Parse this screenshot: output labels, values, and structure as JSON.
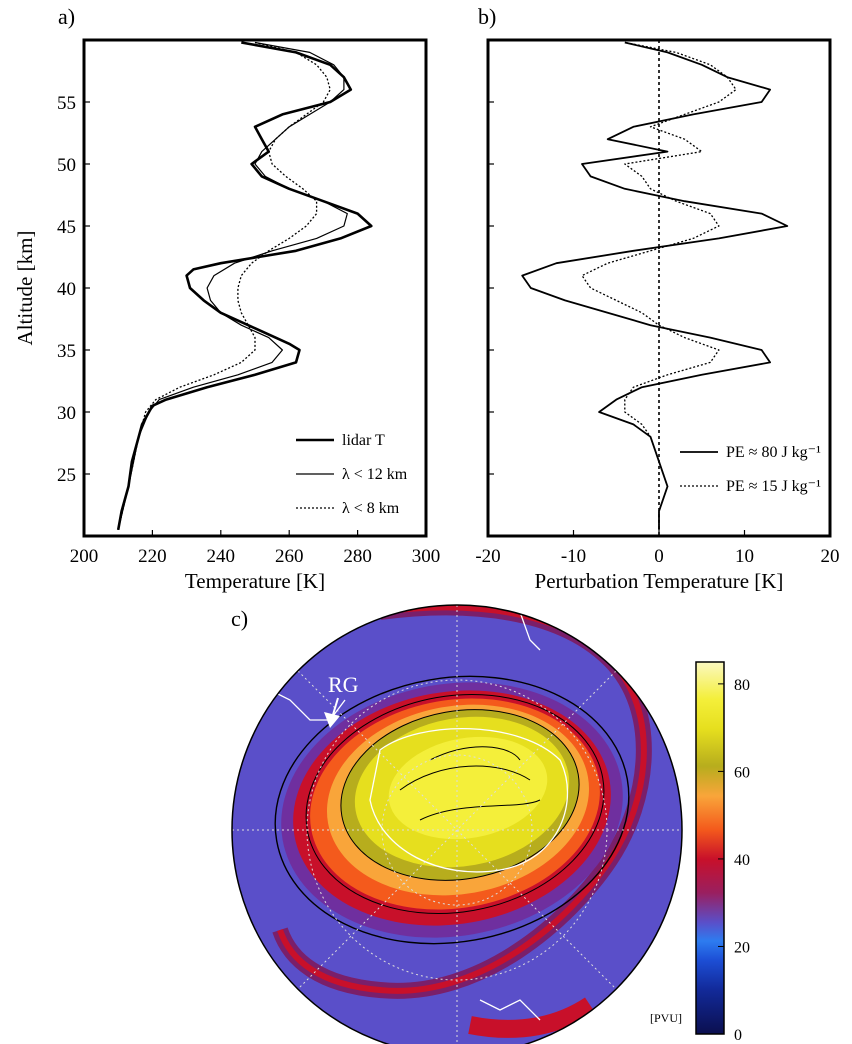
{
  "panels": {
    "a": {
      "label": "a)"
    },
    "b": {
      "label": "b)"
    },
    "c": {
      "label": "c)",
      "site_label": "RG",
      "unit_label": "[PVU]"
    }
  },
  "chart_data": [
    {
      "panel": "a",
      "type": "line",
      "xlabel": "Temperature [K]",
      "ylabel": "Altitude [km]",
      "xlim": [
        200,
        300
      ],
      "ylim": [
        20,
        60
      ],
      "xticks": [
        200,
        220,
        240,
        260,
        280,
        300
      ],
      "yticks": [
        25,
        30,
        35,
        40,
        45,
        50,
        55
      ],
      "legend_position": "bottom-right",
      "series": [
        {
          "name": "lidar T",
          "style": "thick",
          "y": [
            20.5,
            22,
            24,
            26,
            28,
            29,
            30,
            30.5,
            31,
            32,
            33,
            34,
            35,
            35.5,
            36,
            37,
            38,
            39,
            40,
            41,
            41.5,
            42,
            43,
            44,
            45,
            46,
            47,
            48,
            49,
            50,
            51,
            52,
            53,
            54,
            55,
            56,
            57,
            58,
            59,
            59.8
          ],
          "x": [
            210,
            211,
            213,
            214,
            216,
            217,
            219,
            220,
            224,
            236,
            250,
            262,
            263,
            260,
            256,
            248,
            240,
            235,
            231,
            230,
            232,
            240,
            262,
            275,
            284,
            280,
            270,
            260,
            252,
            249,
            254,
            252,
            250,
            258,
            272,
            278,
            276,
            272,
            262,
            246
          ]
        },
        {
          "name": "λ < 12 km",
          "style": "thin",
          "y": [
            20.5,
            24,
            28,
            30,
            31,
            32,
            33,
            34,
            35,
            36,
            37,
            38,
            39,
            40,
            41,
            42,
            43,
            44,
            45,
            46,
            47,
            48,
            49,
            50,
            51,
            52,
            53,
            54,
            55,
            56,
            57,
            58,
            59,
            59.8
          ],
          "x": [
            210,
            213,
            216,
            219,
            222,
            232,
            245,
            255,
            258,
            254,
            246,
            240,
            237,
            236,
            238,
            244,
            255,
            268,
            276,
            277,
            270,
            260,
            253,
            250,
            252,
            256,
            260,
            266,
            272,
            276,
            276,
            273,
            266,
            250
          ]
        },
        {
          "name": "λ < 8 km",
          "style": "dotted",
          "y": [
            20.5,
            24,
            28,
            30,
            31,
            32,
            33,
            34,
            35,
            36,
            37,
            38,
            39,
            40,
            41,
            42,
            43,
            44,
            45,
            46,
            47,
            48,
            49,
            50,
            51,
            52,
            53,
            54,
            55,
            56,
            57,
            58,
            59,
            59.8
          ],
          "x": [
            210,
            213,
            216,
            218,
            221,
            228,
            238,
            246,
            250,
            250,
            248,
            246,
            245,
            245,
            246,
            249,
            254,
            260,
            265,
            268,
            268,
            264,
            259,
            255,
            254,
            256,
            260,
            265,
            270,
            272,
            271,
            268,
            262,
            250
          ]
        }
      ]
    },
    {
      "panel": "b",
      "type": "line",
      "xlabel": "Perturbation Temperature [K]",
      "ylabel": "",
      "xlim": [
        -20,
        20
      ],
      "ylim": [
        20,
        60
      ],
      "xticks": [
        -20,
        -10,
        0,
        10,
        20
      ],
      "yticks": [
        25,
        30,
        35,
        40,
        45,
        50,
        55
      ],
      "reference_line_x": 0,
      "legend_position": "bottom-right",
      "series": [
        {
          "name": "PE ≈ 80 J kg⁻¹",
          "style": "solid",
          "y": [
            20.5,
            22,
            24,
            26,
            28,
            29,
            30,
            31,
            32,
            33,
            34,
            35,
            36,
            37,
            38,
            39,
            40,
            41,
            42,
            43,
            44,
            45,
            46,
            47,
            48,
            49,
            50,
            51,
            52,
            53,
            54,
            55,
            56,
            57,
            58,
            59,
            59.8
          ],
          "x": [
            0,
            0,
            1,
            0,
            -1,
            -3,
            -7,
            -5,
            -2,
            5,
            13,
            12,
            6,
            -1,
            -6,
            -11,
            -15,
            -16,
            -12,
            -3,
            7,
            15,
            12,
            3,
            -4,
            -8,
            -9,
            1,
            -6,
            -3,
            4,
            12,
            13,
            8,
            5,
            1,
            -4
          ]
        },
        {
          "name": "PE ≈ 15 J kg⁻¹",
          "style": "dotted",
          "y": [
            20.5,
            22,
            24,
            26,
            28,
            29,
            30,
            31,
            32,
            33,
            34,
            35,
            36,
            37,
            38,
            39,
            40,
            41,
            42,
            43,
            44,
            45,
            46,
            47,
            48,
            49,
            50,
            51,
            52,
            53,
            54,
            55,
            56,
            57,
            58,
            59,
            59.8
          ],
          "x": [
            0,
            0,
            1,
            0,
            -1,
            -2,
            -4,
            -4,
            -3,
            1,
            6,
            7,
            3,
            0,
            -2,
            -5,
            -8,
            -9,
            -6,
            -1,
            4,
            7,
            6,
            2,
            -1,
            -2,
            -4,
            5,
            3,
            -1,
            3,
            7,
            9,
            8,
            6,
            2,
            -4
          ]
        }
      ]
    },
    {
      "panel": "c",
      "type": "heatmap",
      "colorbar_ticks": [
        0,
        20,
        40,
        60,
        80
      ],
      "colorbar_range": [
        0,
        85
      ],
      "colors": [
        "#0b0f4f",
        "#122a9a",
        "#1d4fd6",
        "#2d7cf0",
        "#5a4fc9",
        "#6f2f9f",
        "#9a1f5f",
        "#c8102a",
        "#ee2a1a",
        "#f45a1c",
        "#f7862a",
        "#f9a53a",
        "#b7ad1d",
        "#e6df1e",
        "#f4ef3a",
        "#f7f37a",
        "#fbf8c0"
      ],
      "background_pv_level": 22
    }
  ]
}
